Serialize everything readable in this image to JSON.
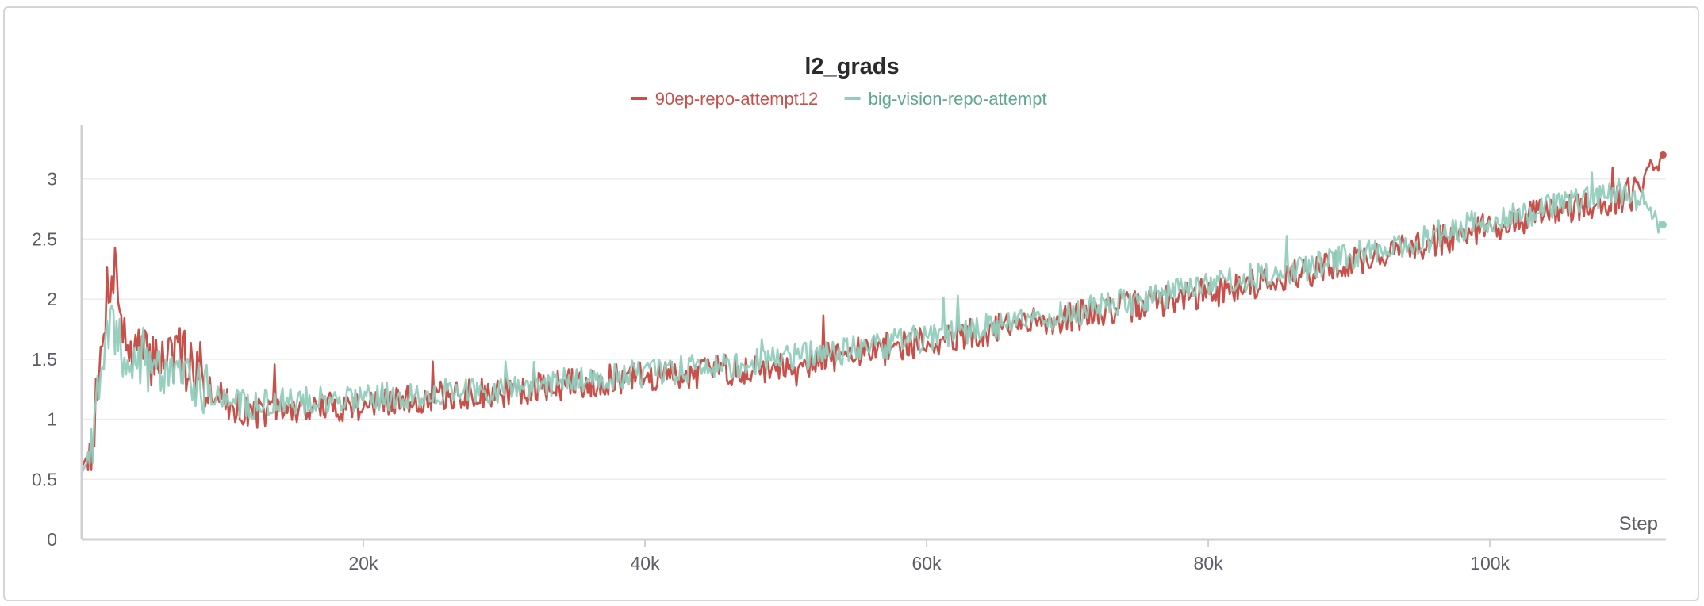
{
  "chart_data": {
    "type": "line",
    "title": "l2_grads",
    "xlabel": "Step",
    "ylabel": "",
    "xlim": [
      0,
      112500
    ],
    "ylim": [
      0,
      3.5
    ],
    "x_ticks": [
      {
        "value": 20000,
        "label": "20k"
      },
      {
        "value": 40000,
        "label": "40k"
      },
      {
        "value": 60000,
        "label": "60k"
      },
      {
        "value": 80000,
        "label": "80k"
      },
      {
        "value": 100000,
        "label": "100k"
      }
    ],
    "y_ticks": [
      {
        "value": 0,
        "label": "0"
      },
      {
        "value": 0.5,
        "label": "0.5"
      },
      {
        "value": 1,
        "label": "1"
      },
      {
        "value": 1.5,
        "label": "1.5"
      },
      {
        "value": 2,
        "label": "2"
      },
      {
        "value": 2.5,
        "label": "2.5"
      },
      {
        "value": 3,
        "label": "3"
      }
    ],
    "grid": true,
    "legend_position": "top-center",
    "series": [
      {
        "name": "90ep-repo-attempt12",
        "color": "#c9504a",
        "noise": 0.13,
        "seed": 7,
        "points": [
          [
            0,
            0.6
          ],
          [
            600,
            0.75
          ],
          [
            1200,
            1.25
          ],
          [
            1800,
            2.1
          ],
          [
            2400,
            2.3
          ],
          [
            3000,
            1.65
          ],
          [
            4500,
            1.5
          ],
          [
            6000,
            1.55
          ],
          [
            8000,
            1.45
          ],
          [
            10000,
            1.15
          ],
          [
            12000,
            1.05
          ],
          [
            15000,
            1.08
          ],
          [
            20000,
            1.12
          ],
          [
            25000,
            1.18
          ],
          [
            30000,
            1.22
          ],
          [
            35000,
            1.3
          ],
          [
            40000,
            1.35
          ],
          [
            45000,
            1.4
          ],
          [
            50000,
            1.45
          ],
          [
            55000,
            1.55
          ],
          [
            60000,
            1.65
          ],
          [
            65000,
            1.75
          ],
          [
            70000,
            1.85
          ],
          [
            75000,
            1.95
          ],
          [
            80000,
            2.05
          ],
          [
            85000,
            2.18
          ],
          [
            90000,
            2.3
          ],
          [
            95000,
            2.45
          ],
          [
            100000,
            2.6
          ],
          [
            105000,
            2.75
          ],
          [
            110000,
            2.85
          ],
          [
            112300,
            3.2
          ]
        ]
      },
      {
        "name": "big-vision-repo-attempt",
        "color": "#92cdbd",
        "noise": 0.12,
        "seed": 19,
        "points": [
          [
            0,
            0.55
          ],
          [
            600,
            0.7
          ],
          [
            1200,
            1.2
          ],
          [
            1800,
            1.75
          ],
          [
            2400,
            1.7
          ],
          [
            3000,
            1.5
          ],
          [
            4500,
            1.45
          ],
          [
            6000,
            1.45
          ],
          [
            8000,
            1.35
          ],
          [
            10000,
            1.15
          ],
          [
            12000,
            1.12
          ],
          [
            15000,
            1.15
          ],
          [
            20000,
            1.18
          ],
          [
            25000,
            1.22
          ],
          [
            30000,
            1.26
          ],
          [
            35000,
            1.32
          ],
          [
            40000,
            1.38
          ],
          [
            45000,
            1.44
          ],
          [
            50000,
            1.5
          ],
          [
            55000,
            1.58
          ],
          [
            60000,
            1.68
          ],
          [
            65000,
            1.78
          ],
          [
            70000,
            1.88
          ],
          [
            75000,
            2.0
          ],
          [
            80000,
            2.1
          ],
          [
            85000,
            2.22
          ],
          [
            90000,
            2.35
          ],
          [
            95000,
            2.5
          ],
          [
            100000,
            2.65
          ],
          [
            105000,
            2.78
          ],
          [
            110000,
            2.9
          ],
          [
            112300,
            2.62
          ]
        ]
      }
    ]
  }
}
